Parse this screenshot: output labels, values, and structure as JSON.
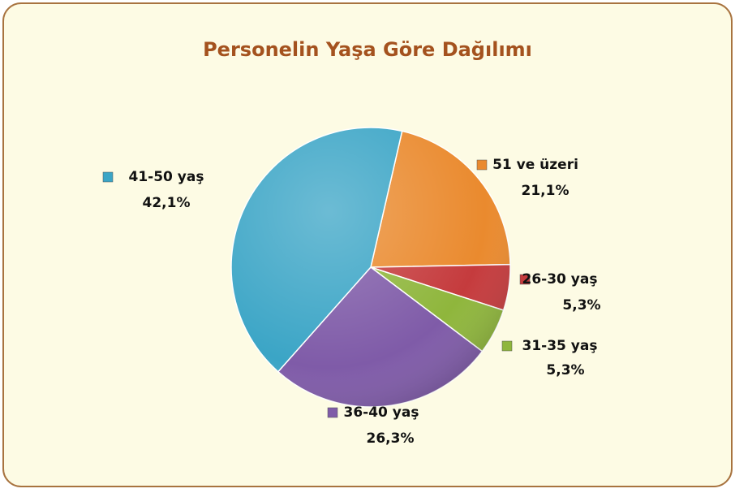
{
  "chart_data": {
    "type": "pie",
    "title": "Personelin Yaşa Göre Dağılımı",
    "categories": [
      "51 ve üzeri",
      "26-30 yaş",
      "31-35 yaş",
      "36-40 yaş",
      "41-50 yaş"
    ],
    "values": [
      21.1,
      5.3,
      5.3,
      26.3,
      42.1
    ],
    "value_labels": [
      "21,1%",
      "5,3%",
      "5,3%",
      "26,3%",
      "42,1%"
    ],
    "colors": [
      "#ea8a2e",
      "#c53b3d",
      "#8fb63c",
      "#7f5ba8",
      "#3ba5c6"
    ]
  }
}
